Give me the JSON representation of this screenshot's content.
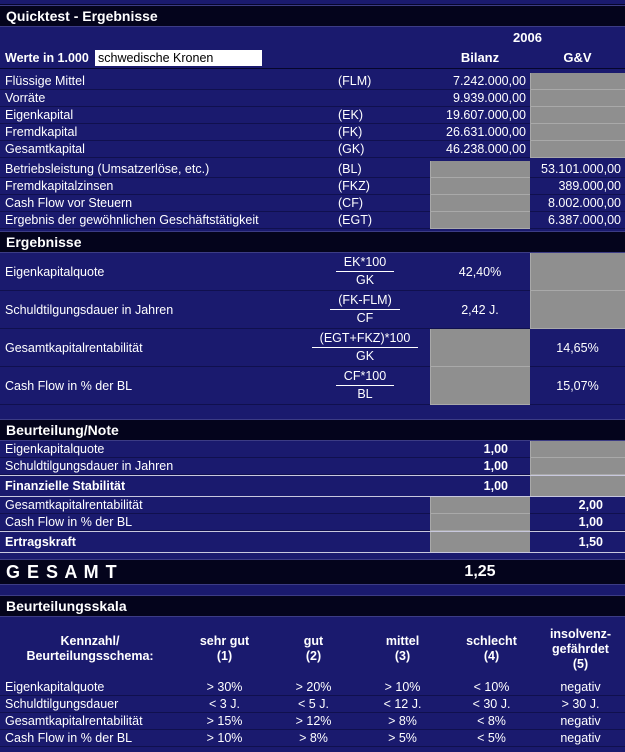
{
  "title": "Quicktest - Ergebnisse",
  "meta": {
    "werte_label": "Werte in 1.000",
    "currency_value": "schwedische Kronen",
    "year": "2006",
    "col_bilanz": "Bilanz",
    "col_gv": "G&V"
  },
  "input_rows": [
    {
      "label": "Flüssige Mittel",
      "code": "(FLM)",
      "bilanz": "7.242.000,00",
      "gv": null
    },
    {
      "label": "Vorräte",
      "code": "",
      "bilanz": "9.939.000,00",
      "gv": null
    },
    {
      "label": "Eigenkapital",
      "code": "(EK)",
      "bilanz": "19.607.000,00",
      "gv": null
    },
    {
      "label": "Fremdkapital",
      "code": "(FK)",
      "bilanz": "26.631.000,00",
      "gv": null
    },
    {
      "label": "Gesamtkapital",
      "code": "(GK)",
      "bilanz": "46.238.000,00",
      "gv": null
    },
    {
      "label": "Betriebsleistung (Umsatzerlöse, etc.)",
      "code": "(BL)",
      "bilanz": null,
      "gv": "53.101.000,00"
    },
    {
      "label": "Fremdkapitalzinsen",
      "code": "(FKZ)",
      "bilanz": null,
      "gv": "389.000,00"
    },
    {
      "label": "Cash Flow vor Steuern",
      "code": "(CF)",
      "bilanz": null,
      "gv": "8.002.000,00"
    },
    {
      "label": "Ergebnis der gewöhnlichen Geschäftstätigkeit",
      "code": "(EGT)",
      "bilanz": null,
      "gv": "6.387.000,00"
    }
  ],
  "section_headers": {
    "ergebnisse": "Ergebnisse",
    "beurteilung": "Beurteilung/Note",
    "skala": "Beurteilungsskala"
  },
  "ratio_rows": [
    {
      "label": "Eigenkapitalquote",
      "numerator": "EK*100",
      "denominator": "GK",
      "bilanz": "42,40%",
      "gv": null
    },
    {
      "label": "Schuldtilgungsdauer in Jahren",
      "numerator": "(FK-FLM)",
      "denominator": "CF",
      "bilanz": "2,42 J.",
      "gv": null
    },
    {
      "label": "Gesamtkapitalrentabilität",
      "numerator": "(EGT+FKZ)*100",
      "denominator": "GK",
      "bilanz": null,
      "gv": "14,65%"
    },
    {
      "label": "Cash Flow in % der BL",
      "numerator": "CF*100",
      "denominator": "BL",
      "bilanz": null,
      "gv": "15,07%"
    }
  ],
  "note_rows": [
    {
      "label": "Eigenkapitalquote",
      "bilanz": "1,00",
      "gv": null,
      "bold": false
    },
    {
      "label": "Schuldtilgungsdauer in Jahren",
      "bilanz": "1,00",
      "gv": null,
      "bold": false
    },
    {
      "label": "Finanzielle Stabilität",
      "bilanz": "1,00",
      "gv": null,
      "bold": true
    },
    {
      "label": "Gesamtkapitalrentabilität",
      "bilanz": null,
      "gv": "2,00",
      "bold": false
    },
    {
      "label": "Cash Flow in % der BL",
      "bilanz": null,
      "gv": "1,00",
      "bold": false
    },
    {
      "label": "Ertragskraft",
      "bilanz": null,
      "gv": "1,50",
      "bold": true
    }
  ],
  "gesamt": {
    "label": "G E S A M T",
    "value": "1,25"
  },
  "scale": {
    "corner": [
      "Kennzahl/",
      "Beurteilungsschema:"
    ],
    "columns": [
      [
        "sehr gut",
        "(1)"
      ],
      [
        "gut",
        "(2)"
      ],
      [
        "mittel",
        "(3)"
      ],
      [
        "schlecht",
        "(4)"
      ],
      [
        "insolvenz-",
        "gefährdet",
        "(5)"
      ]
    ],
    "rows": [
      {
        "label": "Eigenkapitalquote",
        "values": [
          "> 30%",
          "> 20%",
          "> 10%",
          "< 10%",
          "negativ"
        ]
      },
      {
        "label": "Schuldtilgungsdauer",
        "values": [
          "< 3 J.",
          "< 5 J.",
          "< 12 J.",
          "< 30 J.",
          "> 30 J."
        ]
      },
      {
        "label": "Gesamtkapitalrentabilität",
        "values": [
          "> 15%",
          "> 12%",
          "> 8%",
          "< 8%",
          "negativ"
        ]
      },
      {
        "label": "Cash Flow in % der BL",
        "values": [
          "> 10%",
          "> 8%",
          "> 5%",
          "< 5%",
          "negativ"
        ]
      }
    ]
  },
  "colors": {
    "row_bg": "#1a1a6e",
    "header_bg": "#04041c",
    "gray_cell": "#8f8f8f",
    "text": "#ffffff",
    "input_bg": "#ffffff"
  }
}
